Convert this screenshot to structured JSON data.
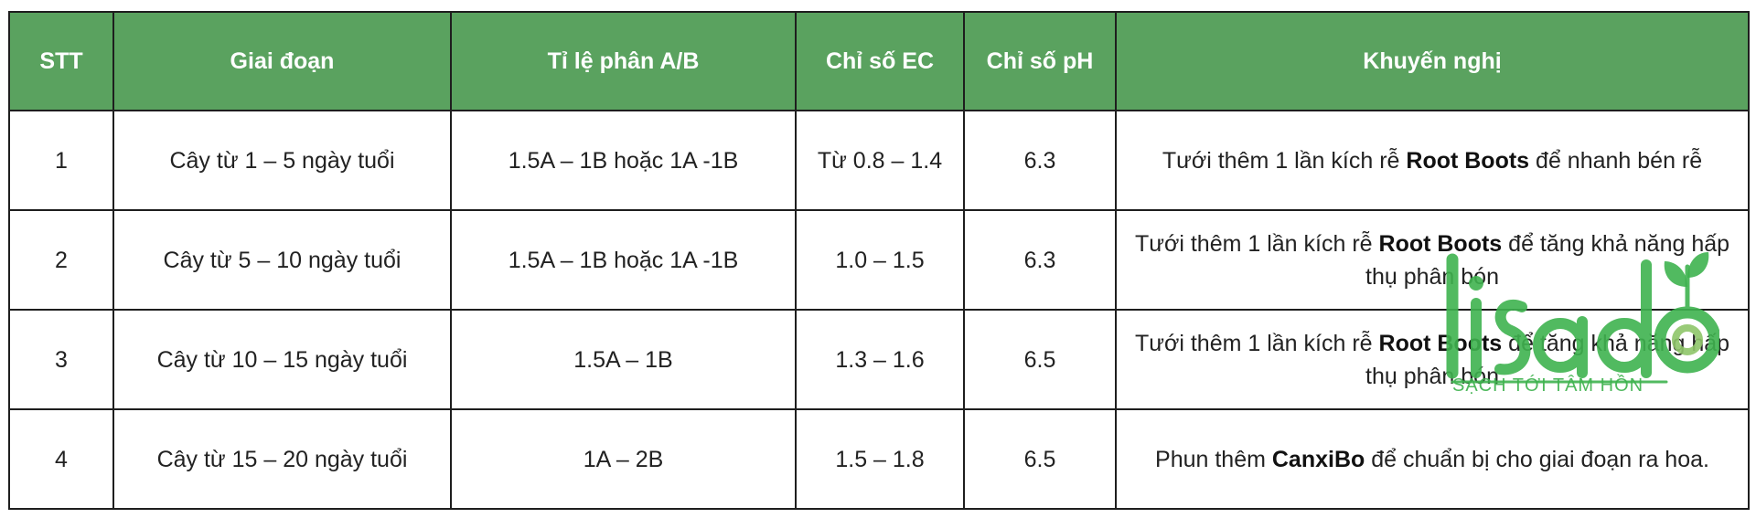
{
  "table": {
    "headers": [
      "STT",
      "Giai đoạn",
      "Tỉ lệ phân A/B",
      "Chỉ số EC",
      "Chỉ số pH",
      "Khuyến nghị"
    ],
    "rows": [
      {
        "stt": "1",
        "stage": "Cây từ 1 – 5 ngày tuổi",
        "ratio": "1.5A – 1B hoặc 1A -1B",
        "ec": "Từ 0.8 – 1.4",
        "ph": "6.3",
        "rec_pre": "Tưới thêm 1 lần kích rễ ",
        "rec_bold": "Root Boots",
        "rec_post": " để nhanh bén rễ"
      },
      {
        "stt": "2",
        "stage": "Cây từ 5 – 10 ngày tuổi",
        "ratio": "1.5A – 1B hoặc 1A -1B",
        "ec": "1.0 – 1.5",
        "ph": "6.3",
        "rec_pre": "Tưới thêm 1 lần kích rễ ",
        "rec_bold": "Root Boots",
        "rec_post": " để tăng khả năng hấp thụ phân bón"
      },
      {
        "stt": "3",
        "stage": "Cây từ 10 – 15 ngày tuổi",
        "ratio": "1.5A – 1B",
        "ec": "1.3 – 1.6",
        "ph": "6.5",
        "rec_pre": "Tưới thêm 1 lần kích rễ ",
        "rec_bold": "Root Boots",
        "rec_post": " để tăng khả năng hấp thụ phân bón"
      },
      {
        "stt": "4",
        "stage": "Cây từ 15 – 20 ngày tuổi",
        "ratio": "1A – 2B",
        "ec": "1.5 – 1.8",
        "ph": "6.5",
        "rec_pre": "Phun thêm ",
        "rec_bold": "CanxiBo",
        "rec_post": " để chuẩn bị cho giai đoạn ra hoa."
      }
    ]
  },
  "watermark": {
    "brand": "lisado",
    "tagline": "SẠCH TỚI TÂM HỒN"
  },
  "colors": {
    "header_bg": "#5aa25f",
    "header_text": "#ffffff",
    "border": "#1e1e1e",
    "watermark": "#3fb34f"
  }
}
